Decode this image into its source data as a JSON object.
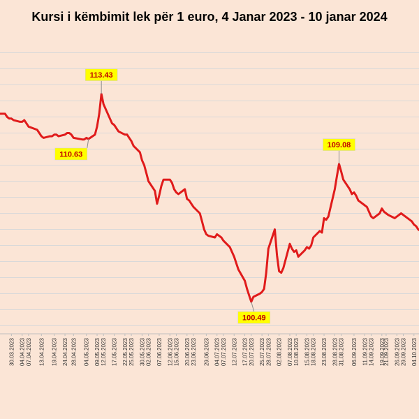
{
  "colors": {
    "background": "#fbe5d6",
    "line": "#e01b1b",
    "grid": "#d9d9d9",
    "callout_fill": "#ffff00",
    "callout_text": "#c00000"
  },
  "chart_data": {
    "type": "line",
    "title": "Kursi i këmbimit lek për 1 euro, 4 Janar 2023 - 10 janar 2024",
    "xlabel": "",
    "ylabel": "",
    "grid": true,
    "legend": "none",
    "xlim": [
      "2023-03-24",
      "2023-10-07"
    ],
    "ylim": [
      98.5,
      116.5
    ],
    "x_tick_labels": [
      "30.03.2023",
      "04.04.2023",
      "07.04.2023",
      "13.04.2023",
      "19.04.2023",
      "24.04.2023",
      "28.04.2023",
      "04.05.2023",
      "09.05.2023",
      "12.05.2023",
      "17.05.2023",
      "22.05.2023",
      "25.05.2023",
      "30.05.2023",
      "02.06.2023",
      "07.06.2023",
      "12.06.2023",
      "15.06.2023",
      "20.06.2023",
      "23.06.2023",
      "29.06.2023",
      "04.07.2023",
      "07.07.2023",
      "12.07.2023",
      "17.07.2023",
      "20.07.2023",
      "25.07.2023",
      "28.07.2023",
      "02.08.2023",
      "07.08.2023",
      "10.08.2023",
      "15.08.2023",
      "18.08.2023",
      "23.08.2023",
      "28.08.2023",
      "31.08.2023",
      "06.09.2023",
      "11.09.2023",
      "14.09.2023",
      "19.09.2023",
      "21.09.2023",
      "26.09.2023",
      "29.09.2023",
      "04.10.2023"
    ],
    "series": [
      {
        "points": [
          [
            "2023-03-24",
            112.2
          ],
          [
            "2023-03-27",
            112.2
          ],
          [
            "2023-03-28",
            112.0
          ],
          [
            "2023-03-29",
            111.9
          ],
          [
            "2023-03-30",
            111.9
          ],
          [
            "2023-03-31",
            111.8
          ],
          [
            "2023-04-03",
            111.7
          ],
          [
            "2023-04-04",
            111.7
          ],
          [
            "2023-04-05",
            111.8
          ],
          [
            "2023-04-06",
            111.6
          ],
          [
            "2023-04-07",
            111.4
          ],
          [
            "2023-04-11",
            111.2
          ],
          [
            "2023-04-12",
            111.0
          ],
          [
            "2023-04-13",
            110.8
          ],
          [
            "2023-04-14",
            110.7
          ],
          [
            "2023-04-17",
            110.8
          ],
          [
            "2023-04-18",
            110.8
          ],
          [
            "2023-04-19",
            110.9
          ],
          [
            "2023-04-20",
            110.9
          ],
          [
            "2023-04-21",
            110.8
          ],
          [
            "2023-04-24",
            110.9
          ],
          [
            "2023-04-25",
            111.0
          ],
          [
            "2023-04-26",
            111.0
          ],
          [
            "2023-04-27",
            110.9
          ],
          [
            "2023-04-28",
            110.7
          ],
          [
            "2023-05-02",
            110.6
          ],
          [
            "2023-05-03",
            110.6
          ],
          [
            "2023-05-04",
            110.7
          ],
          [
            "2023-05-05",
            110.63
          ],
          [
            "2023-05-08",
            110.9
          ],
          [
            "2023-05-09",
            111.4
          ],
          [
            "2023-05-10",
            112.2
          ],
          [
            "2023-05-11",
            113.43
          ],
          [
            "2023-05-12",
            112.8
          ],
          [
            "2023-05-15",
            111.9
          ],
          [
            "2023-05-16",
            111.6
          ],
          [
            "2023-05-17",
            111.5
          ],
          [
            "2023-05-18",
            111.3
          ],
          [
            "2023-05-19",
            111.1
          ],
          [
            "2023-05-22",
            110.9
          ],
          [
            "2023-05-23",
            110.9
          ],
          [
            "2023-05-24",
            110.7
          ],
          [
            "2023-05-25",
            110.5
          ],
          [
            "2023-05-26",
            110.2
          ],
          [
            "2023-05-29",
            109.8
          ],
          [
            "2023-05-30",
            109.3
          ],
          [
            "2023-05-31",
            109.0
          ],
          [
            "2023-06-01",
            108.5
          ],
          [
            "2023-06-02",
            108.0
          ],
          [
            "2023-06-05",
            107.4
          ],
          [
            "2023-06-06",
            106.6
          ],
          [
            "2023-06-07",
            107.1
          ],
          [
            "2023-06-08",
            107.7
          ],
          [
            "2023-06-09",
            108.1
          ],
          [
            "2023-06-12",
            108.1
          ],
          [
            "2023-06-13",
            107.9
          ],
          [
            "2023-06-14",
            107.5
          ],
          [
            "2023-06-15",
            107.3
          ],
          [
            "2023-06-16",
            107.2
          ],
          [
            "2023-06-19",
            107.5
          ],
          [
            "2023-06-20",
            106.9
          ],
          [
            "2023-06-21",
            106.8
          ],
          [
            "2023-06-22",
            106.6
          ],
          [
            "2023-06-23",
            106.4
          ],
          [
            "2023-06-26",
            106.0
          ],
          [
            "2023-06-27",
            105.5
          ],
          [
            "2023-06-28",
            105.0
          ],
          [
            "2023-06-29",
            104.7
          ],
          [
            "2023-06-30",
            104.6
          ],
          [
            "2023-07-03",
            104.5
          ],
          [
            "2023-07-04",
            104.7
          ],
          [
            "2023-07-05",
            104.6
          ],
          [
            "2023-07-06",
            104.5
          ],
          [
            "2023-07-07",
            104.3
          ],
          [
            "2023-07-10",
            103.9
          ],
          [
            "2023-07-11",
            103.6
          ],
          [
            "2023-07-12",
            103.3
          ],
          [
            "2023-07-13",
            102.9
          ],
          [
            "2023-07-14",
            102.5
          ],
          [
            "2023-07-17",
            101.8
          ],
          [
            "2023-07-18",
            101.3
          ],
          [
            "2023-07-19",
            100.9
          ],
          [
            "2023-07-20",
            100.49
          ],
          [
            "2023-07-21",
            100.8
          ],
          [
            "2023-07-24",
            101.0
          ],
          [
            "2023-07-25",
            101.1
          ],
          [
            "2023-07-26",
            101.3
          ],
          [
            "2023-07-27",
            102.3
          ],
          [
            "2023-07-28",
            103.8
          ],
          [
            "2023-07-31",
            105.0
          ],
          [
            "2023-08-01",
            103.4
          ],
          [
            "2023-08-02",
            102.4
          ],
          [
            "2023-08-03",
            102.3
          ],
          [
            "2023-08-04",
            102.6
          ],
          [
            "2023-08-07",
            104.1
          ],
          [
            "2023-08-08",
            103.8
          ],
          [
            "2023-08-09",
            103.6
          ],
          [
            "2023-08-10",
            103.7
          ],
          [
            "2023-08-11",
            103.3
          ],
          [
            "2023-08-14",
            103.7
          ],
          [
            "2023-08-15",
            103.9
          ],
          [
            "2023-08-16",
            103.8
          ],
          [
            "2023-08-17",
            104.0
          ],
          [
            "2023-08-18",
            104.5
          ],
          [
            "2023-08-21",
            104.9
          ],
          [
            "2023-08-22",
            104.8
          ],
          [
            "2023-08-23",
            105.7
          ],
          [
            "2023-08-24",
            105.6
          ],
          [
            "2023-08-25",
            105.8
          ],
          [
            "2023-08-28",
            107.5
          ],
          [
            "2023-08-29",
            108.3
          ],
          [
            "2023-08-30",
            109.08
          ],
          [
            "2023-08-31",
            108.6
          ],
          [
            "2023-09-01",
            108.1
          ],
          [
            "2023-09-04",
            107.5
          ],
          [
            "2023-09-05",
            107.2
          ],
          [
            "2023-09-06",
            107.3
          ],
          [
            "2023-09-07",
            107.1
          ],
          [
            "2023-09-08",
            106.8
          ],
          [
            "2023-09-11",
            106.5
          ],
          [
            "2023-09-12",
            106.4
          ],
          [
            "2023-09-13",
            106.1
          ],
          [
            "2023-09-14",
            105.8
          ],
          [
            "2023-09-15",
            105.7
          ],
          [
            "2023-09-18",
            106.0
          ],
          [
            "2023-09-19",
            106.3
          ],
          [
            "2023-09-20",
            106.1
          ],
          [
            "2023-09-21",
            106.0
          ],
          [
            "2023-09-22",
            105.9
          ],
          [
            "2023-09-25",
            105.7
          ],
          [
            "2023-09-26",
            105.8
          ],
          [
            "2023-09-27",
            105.9
          ],
          [
            "2023-09-28",
            106.0
          ],
          [
            "2023-09-29",
            105.9
          ],
          [
            "2023-10-02",
            105.6
          ],
          [
            "2023-10-03",
            105.5
          ],
          [
            "2023-10-04",
            105.3
          ],
          [
            "2023-10-05",
            105.2
          ],
          [
            "2023-10-06",
            105.0
          ],
          [
            "2023-10-07",
            104.9
          ]
        ]
      }
    ],
    "annotations": [
      {
        "x": "2023-05-11",
        "y": 113.43,
        "text": "113.43",
        "side": "above"
      },
      {
        "x": "2023-05-05",
        "y": 110.63,
        "text": "110.63",
        "side": "below-left"
      },
      {
        "x": "2023-07-20",
        "y": 100.49,
        "text": "100.49",
        "side": "below"
      },
      {
        "x": "2023-08-30",
        "y": 109.08,
        "text": "109.08",
        "side": "above"
      }
    ]
  }
}
